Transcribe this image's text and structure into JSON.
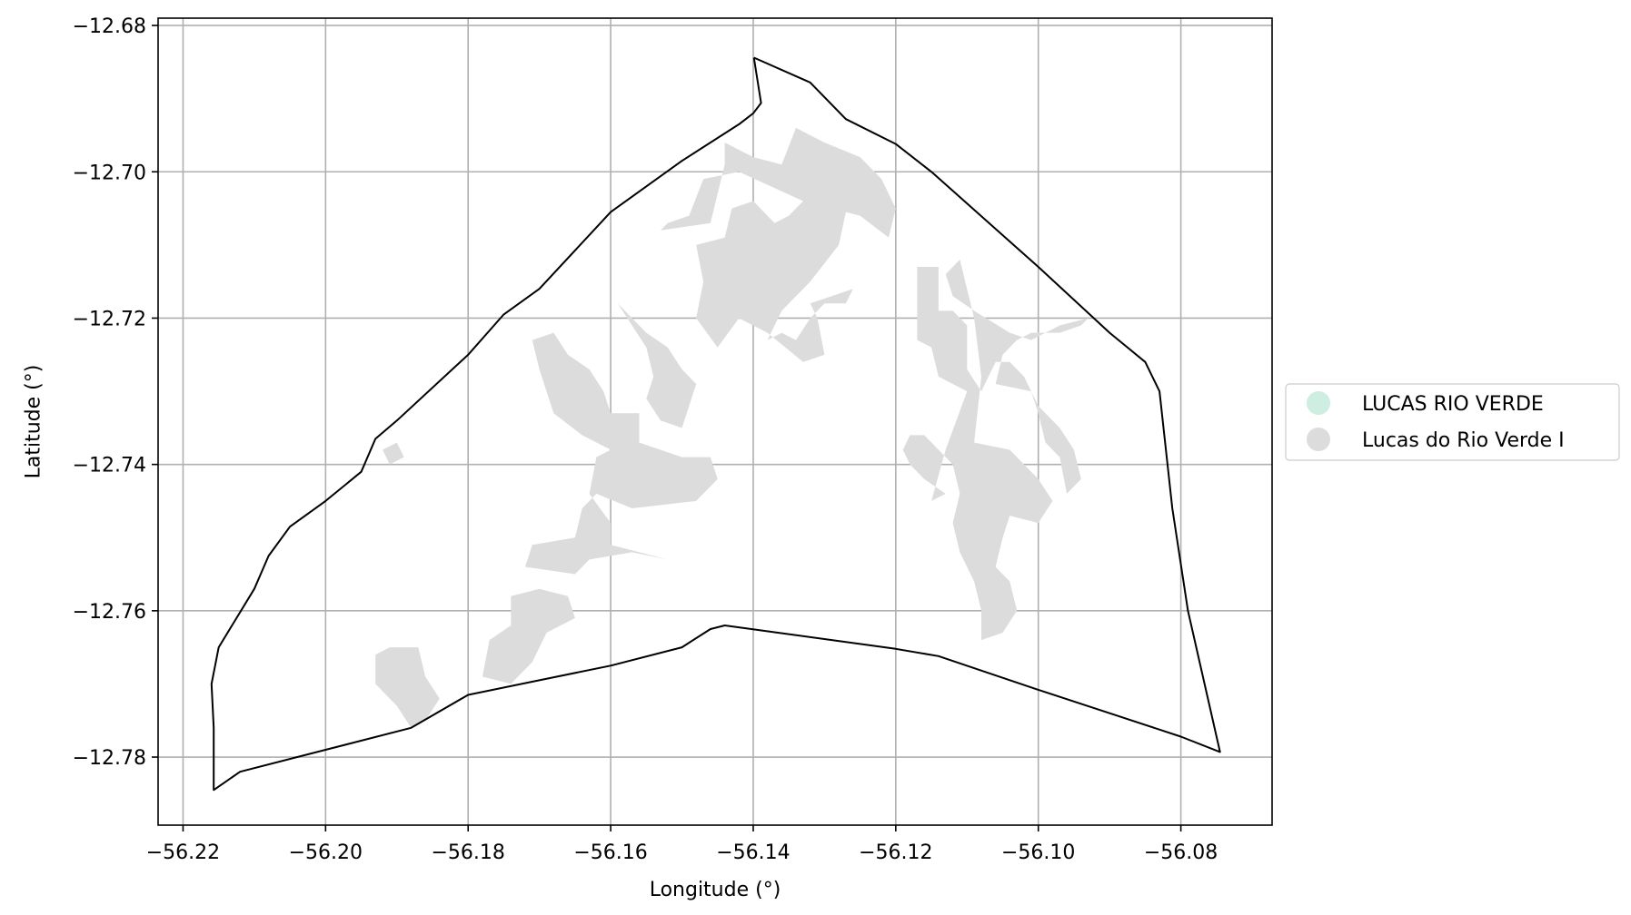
{
  "chart_data": {
    "type": "map",
    "xlabel": "Longitude (°)",
    "ylabel": "Latitude (°)",
    "xlim": [
      -56.2235,
      -56.0672
    ],
    "ylim": [
      -12.7893,
      -12.679
    ],
    "xticks": [
      -56.22,
      -56.2,
      -56.18,
      -56.16,
      -56.14,
      -56.12,
      -56.1,
      -56.08
    ],
    "yticks": [
      -12.68,
      -12.7,
      -12.72,
      -12.74,
      -12.76,
      -12.78
    ],
    "xtick_labels": [
      "−56.22",
      "−56.20",
      "−56.18",
      "−56.16",
      "−56.14",
      "−56.12",
      "−56.10",
      "−56.08"
    ],
    "ytick_labels": [
      "−12.68",
      "−12.70",
      "−12.72",
      "−12.74",
      "−12.76",
      "−12.78"
    ],
    "grid": true,
    "legend_position": "right",
    "legend": [
      {
        "label": "LUCAS RIO VERDE",
        "color": "#cdeee0"
      },
      {
        "label": "Lucas do Rio Verde I",
        "color": "#dcdcdc"
      }
    ],
    "boundary": {
      "stroke_color": "#000000",
      "coordinates": [
        [
          -56.1399,
          -12.6844
        ],
        [
          -56.1389,
          -12.6906
        ],
        [
          -56.14,
          -12.692
        ],
        [
          -56.142,
          -12.6935
        ],
        [
          -56.15,
          -12.6985
        ],
        [
          -56.16,
          -12.7055
        ],
        [
          -56.17,
          -12.716
        ],
        [
          -56.175,
          -12.7195
        ],
        [
          -56.18,
          -12.725
        ],
        [
          -56.19,
          -12.734
        ],
        [
          -56.193,
          -12.7365
        ],
        [
          -56.195,
          -12.741
        ],
        [
          -56.2,
          -12.745
        ],
        [
          -56.205,
          -12.7485
        ],
        [
          -56.208,
          -12.7525
        ],
        [
          -56.21,
          -12.757
        ],
        [
          -56.215,
          -12.765
        ],
        [
          -56.216,
          -12.77
        ],
        [
          -56.2157,
          -12.776
        ],
        [
          -56.2157,
          -12.7845
        ],
        [
          -56.212,
          -12.782
        ],
        [
          -56.2,
          -12.779
        ],
        [
          -56.188,
          -12.776
        ],
        [
          -56.18,
          -12.7715
        ],
        [
          -56.17,
          -12.7695
        ],
        [
          -56.16,
          -12.7675
        ],
        [
          -56.15,
          -12.765
        ],
        [
          -56.146,
          -12.7625
        ],
        [
          -56.144,
          -12.762
        ],
        [
          -56.12,
          -12.7652
        ],
        [
          -56.114,
          -12.7662
        ],
        [
          -56.1,
          -12.7708
        ],
        [
          -56.09,
          -12.774
        ],
        [
          -56.08,
          -12.7772
        ],
        [
          -56.0745,
          -12.7793
        ],
        [
          -56.079,
          -12.76
        ],
        [
          -56.0812,
          -12.746
        ],
        [
          -56.083,
          -12.73
        ],
        [
          -56.085,
          -12.726
        ],
        [
          -56.09,
          -12.722
        ],
        [
          -56.1,
          -12.713
        ],
        [
          -56.115,
          -12.7
        ],
        [
          -56.12,
          -12.6962
        ],
        [
          -56.127,
          -12.6928
        ],
        [
          -56.132,
          -12.6878
        ],
        [
          -56.1399,
          -12.6844
        ]
      ]
    },
    "areas": {
      "name": "Lucas do Rio Verde I",
      "fill_color": "#dcdcdc",
      "polygons": [
        [
          [
            -56.134,
            -12.694
          ],
          [
            -56.13,
            -12.696
          ],
          [
            -56.125,
            -12.698
          ],
          [
            -56.122,
            -12.701
          ],
          [
            -56.12,
            -12.705
          ],
          [
            -56.121,
            -12.709
          ],
          [
            -56.125,
            -12.706
          ],
          [
            -56.127,
            -12.7055
          ],
          [
            -56.128,
            -12.71
          ],
          [
            -56.132,
            -12.715
          ],
          [
            -56.136,
            -12.719
          ],
          [
            -56.138,
            -12.723
          ],
          [
            -56.136,
            -12.722
          ],
          [
            -56.134,
            -12.723
          ],
          [
            -56.132,
            -12.72
          ],
          [
            -56.13,
            -12.718
          ],
          [
            -56.127,
            -12.718
          ],
          [
            -56.126,
            -12.716
          ],
          [
            -56.132,
            -12.718
          ],
          [
            -56.131,
            -12.72
          ],
          [
            -56.13,
            -12.725
          ],
          [
            -56.133,
            -12.726
          ],
          [
            -56.138,
            -12.722
          ],
          [
            -56.142,
            -12.72
          ],
          [
            -56.145,
            -12.724
          ],
          [
            -56.148,
            -12.72
          ],
          [
            -56.147,
            -12.715
          ],
          [
            -56.148,
            -12.71
          ],
          [
            -56.144,
            -12.709
          ],
          [
            -56.143,
            -12.705
          ],
          [
            -56.14,
            -12.704
          ],
          [
            -56.137,
            -12.707
          ],
          [
            -56.135,
            -12.706
          ],
          [
            -56.133,
            -12.704
          ],
          [
            -56.142,
            -12.7
          ],
          [
            -56.147,
            -12.701
          ],
          [
            -56.149,
            -12.706
          ],
          [
            -56.152,
            -12.707
          ],
          [
            -56.153,
            -12.708
          ],
          [
            -56.146,
            -12.707
          ],
          [
            -56.144,
            -12.699
          ],
          [
            -56.144,
            -12.696
          ],
          [
            -56.14,
            -12.698
          ],
          [
            -56.136,
            -12.699
          ],
          [
            -56.134,
            -12.694
          ]
        ],
        [
          [
            -56.117,
            -12.713
          ],
          [
            -56.114,
            -12.713
          ],
          [
            -56.114,
            -12.719
          ],
          [
            -56.112,
            -12.719
          ],
          [
            -56.11,
            -12.721
          ],
          [
            -56.11,
            -12.727
          ],
          [
            -56.108,
            -12.73
          ],
          [
            -56.106,
            -12.726
          ],
          [
            -56.104,
            -12.726
          ],
          [
            -56.102,
            -12.728
          ],
          [
            -56.1,
            -12.732
          ],
          [
            -56.097,
            -12.735
          ],
          [
            -56.095,
            -12.738
          ],
          [
            -56.094,
            -12.742
          ],
          [
            -56.096,
            -12.744
          ],
          [
            -56.097,
            -12.739
          ],
          [
            -56.099,
            -12.737
          ],
          [
            -56.1,
            -12.733
          ],
          [
            -56.101,
            -12.73
          ],
          [
            -56.106,
            -12.729
          ],
          [
            -56.105,
            -12.725
          ],
          [
            -56.103,
            -12.723
          ],
          [
            -56.101,
            -12.722
          ],
          [
            -56.097,
            -12.722
          ],
          [
            -56.094,
            -12.721
          ],
          [
            -56.093,
            -12.72
          ],
          [
            -56.097,
            -12.721
          ],
          [
            -56.101,
            -12.723
          ],
          [
            -56.104,
            -12.722
          ],
          [
            -56.109,
            -12.719
          ],
          [
            -56.112,
            -12.717
          ],
          [
            -56.113,
            -12.714
          ],
          [
            -56.111,
            -12.712
          ],
          [
            -56.109,
            -12.72
          ],
          [
            -56.108,
            -12.728
          ],
          [
            -56.109,
            -12.737
          ],
          [
            -56.104,
            -12.738
          ],
          [
            -56.1,
            -12.742
          ],
          [
            -56.098,
            -12.745
          ],
          [
            -56.1,
            -12.748
          ],
          [
            -56.104,
            -12.747
          ],
          [
            -56.105,
            -12.75
          ],
          [
            -56.106,
            -12.754
          ],
          [
            -56.104,
            -12.756
          ],
          [
            -56.103,
            -12.76
          ],
          [
            -56.105,
            -12.763
          ],
          [
            -56.108,
            -12.764
          ],
          [
            -56.108,
            -12.76
          ],
          [
            -56.109,
            -12.756
          ],
          [
            -56.111,
            -12.752
          ],
          [
            -56.112,
            -12.748
          ],
          [
            -56.111,
            -12.744
          ],
          [
            -56.112,
            -12.74
          ],
          [
            -56.114,
            -12.738
          ],
          [
            -56.116,
            -12.736
          ],
          [
            -56.118,
            -12.736
          ],
          [
            -56.119,
            -12.738
          ],
          [
            -56.118,
            -12.74
          ],
          [
            -56.116,
            -12.742
          ],
          [
            -56.113,
            -12.744
          ],
          [
            -56.115,
            -12.745
          ],
          [
            -56.113,
            -12.738
          ],
          [
            -56.11,
            -12.73
          ],
          [
            -56.114,
            -12.728
          ],
          [
            -56.115,
            -12.724
          ],
          [
            -56.117,
            -12.723
          ],
          [
            -56.117,
            -12.713
          ]
        ],
        [
          [
            -56.171,
            -12.723
          ],
          [
            -56.168,
            -12.722
          ],
          [
            -56.166,
            -12.725
          ],
          [
            -56.163,
            -12.727
          ],
          [
            -56.161,
            -12.73
          ],
          [
            -56.16,
            -12.733
          ],
          [
            -56.156,
            -12.733
          ],
          [
            -56.156,
            -12.737
          ],
          [
            -56.15,
            -12.739
          ],
          [
            -56.146,
            -12.739
          ],
          [
            -56.145,
            -12.742
          ],
          [
            -56.148,
            -12.745
          ],
          [
            -56.157,
            -12.746
          ],
          [
            -56.162,
            -12.744
          ],
          [
            -56.164,
            -12.746
          ],
          [
            -56.165,
            -12.75
          ],
          [
            -56.171,
            -12.751
          ],
          [
            -56.172,
            -12.754
          ],
          [
            -56.165,
            -12.755
          ],
          [
            -56.163,
            -12.753
          ],
          [
            -56.157,
            -12.752
          ],
          [
            -56.152,
            -12.753
          ],
          [
            -56.16,
            -12.751
          ],
          [
            -56.16,
            -12.748
          ],
          [
            -56.163,
            -12.744
          ],
          [
            -56.162,
            -12.739
          ],
          [
            -56.16,
            -12.738
          ],
          [
            -56.164,
            -12.736
          ],
          [
            -56.168,
            -12.733
          ],
          [
            -56.169,
            -12.73
          ],
          [
            -56.17,
            -12.727
          ],
          [
            -56.171,
            -12.723
          ]
        ],
        [
          [
            -56.159,
            -12.718
          ],
          [
            -56.157,
            -12.721
          ],
          [
            -56.155,
            -12.724
          ],
          [
            -56.154,
            -12.728
          ],
          [
            -56.155,
            -12.731
          ],
          [
            -56.153,
            -12.734
          ],
          [
            -56.15,
            -12.735
          ],
          [
            -56.149,
            -12.732
          ],
          [
            -56.148,
            -12.729
          ],
          [
            -56.15,
            -12.727
          ],
          [
            -56.152,
            -12.724
          ],
          [
            -56.155,
            -12.722
          ],
          [
            -56.159,
            -12.718
          ]
        ],
        [
          [
            -56.174,
            -12.758
          ],
          [
            -56.17,
            -12.757
          ],
          [
            -56.166,
            -12.758
          ],
          [
            -56.165,
            -12.761
          ],
          [
            -56.169,
            -12.763
          ],
          [
            -56.171,
            -12.767
          ],
          [
            -56.174,
            -12.77
          ],
          [
            -56.178,
            -12.769
          ],
          [
            -56.177,
            -12.764
          ],
          [
            -56.174,
            -12.762
          ],
          [
            -56.174,
            -12.758
          ]
        ],
        [
          [
            -56.191,
            -12.765
          ],
          [
            -56.187,
            -12.765
          ],
          [
            -56.186,
            -12.769
          ],
          [
            -56.184,
            -12.772
          ],
          [
            -56.186,
            -12.775
          ],
          [
            -56.188,
            -12.776
          ],
          [
            -56.19,
            -12.773
          ],
          [
            -56.193,
            -12.77
          ],
          [
            -56.193,
            -12.766
          ],
          [
            -56.191,
            -12.765
          ]
        ],
        [
          [
            -56.192,
            -12.738
          ],
          [
            -56.19,
            -12.737
          ],
          [
            -56.189,
            -12.739
          ],
          [
            -56.191,
            -12.74
          ],
          [
            -56.192,
            -12.738
          ]
        ]
      ]
    }
  }
}
